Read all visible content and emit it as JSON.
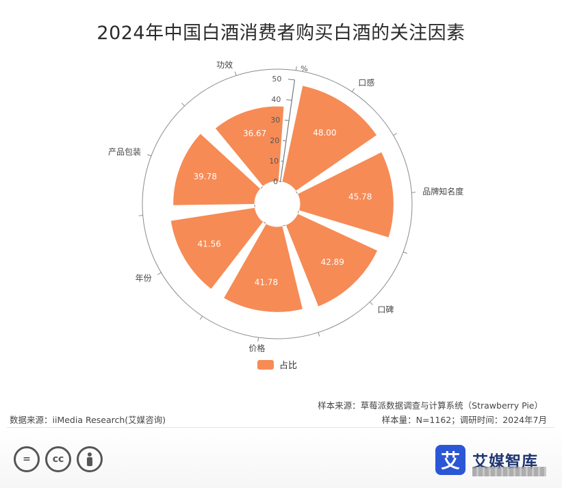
{
  "title": "2024年中国白酒消费者购买白酒的关注因素",
  "legend_label": "占比",
  "footer": {
    "source_left": "数据来源：iiMedia Research(艾媒咨询)",
    "sample_source": "样本来源：草莓派数据调查与计算系统（Strawberry Pie）",
    "sample_info": "样本量：N=1162；调研时间：2024年7月"
  },
  "brand": {
    "logo_char": "艾",
    "name": "艾媒智库"
  },
  "license_icons": [
    "equals-icon",
    "cc-icon",
    "person-icon"
  ],
  "colors": {
    "bar": "#f68b55",
    "bar_stroke": "#ffffff",
    "axis": "#777777"
  },
  "chart_data": {
    "type": "bar",
    "coordinate": "polar",
    "categories": [
      "口感",
      "品牌知名度",
      "口碑",
      "价格",
      "年份",
      "产品包装",
      "功效"
    ],
    "series": [
      {
        "name": "占比",
        "values": [
          48.0,
          45.78,
          42.89,
          41.78,
          41.56,
          39.78,
          36.67
        ]
      }
    ],
    "data_labels": [
      "48.00",
      "45.78",
      "42.89",
      "41.78",
      "41.56",
      "39.78",
      "36.67"
    ],
    "radial_axis": {
      "min": 0,
      "max": 50,
      "ticks": [
        0,
        10,
        20,
        30,
        40,
        50
      ],
      "unit": "%"
    },
    "legend_position": "bottom-center"
  }
}
